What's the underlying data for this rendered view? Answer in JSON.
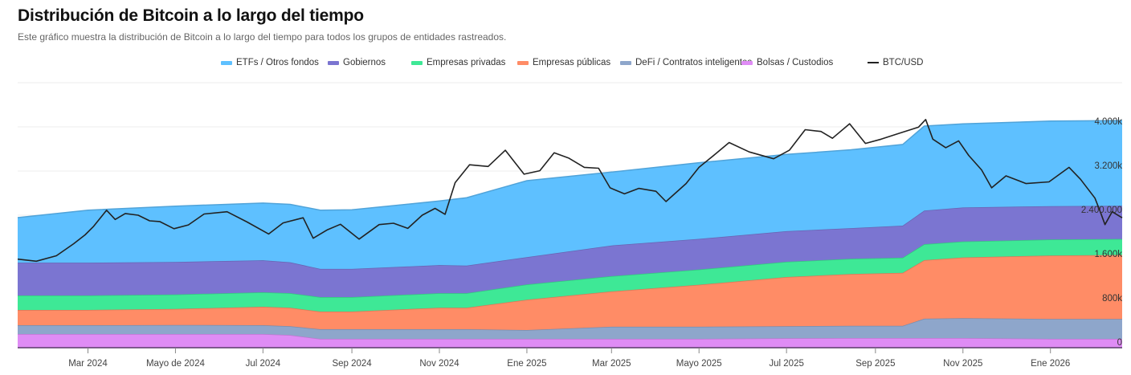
{
  "header": {
    "title": "Distribución de Bitcoin a lo largo del tiempo",
    "subtitle": "Este gráfico muestra la distribución de Bitcoin a lo largo del tiempo para todos los grupos de entidades rastreados."
  },
  "chart_data": {
    "type": "area",
    "stacked": true,
    "title": "Distribución de Bitcoin a lo largo del tiempo",
    "xlabel": "",
    "ylabel": "",
    "ylim": [
      0,
      4800000
    ],
    "y_ticks": [
      {
        "value": 0,
        "label": "0"
      },
      {
        "value": 800000,
        "label": "800k"
      },
      {
        "value": 1600000,
        "label": "1.600k"
      },
      {
        "value": 2400000,
        "label": "2.400.000"
      },
      {
        "value": 3200000,
        "label": "3.200k"
      },
      {
        "value": 4000000,
        "label": "4.000k"
      }
    ],
    "y_axis_position": "right-inside",
    "grid": true,
    "legend_position": "top-center",
    "x_range": [
      "2024-01-12",
      "2026-02-20"
    ],
    "x_ticks": [
      {
        "date": "2024-03-01",
        "label": "Mar 2024"
      },
      {
        "date": "2024-05-01",
        "label": "Mayo de 2024"
      },
      {
        "date": "2024-07-01",
        "label": "Jul 2024"
      },
      {
        "date": "2024-09-01",
        "label": "Sep 2024"
      },
      {
        "date": "2024-11-01",
        "label": "Nov 2024"
      },
      {
        "date": "2025-01-01",
        "label": "Ene 2025"
      },
      {
        "date": "2025-03-01",
        "label": "Mar 2025"
      },
      {
        "date": "2025-05-01",
        "label": "Mayo 2025"
      },
      {
        "date": "2025-07-01",
        "label": "Jul 2025"
      },
      {
        "date": "2025-09-01",
        "label": "Sep 2025"
      },
      {
        "date": "2025-11-01",
        "label": "Nov 2025"
      },
      {
        "date": "2026-01-01",
        "label": "Ene 2026"
      }
    ],
    "x": [
      "2024-01-12",
      "2024-03-01",
      "2024-05-01",
      "2024-07-01",
      "2024-07-20",
      "2024-08-10",
      "2024-09-01",
      "2024-11-01",
      "2024-11-20",
      "2025-01-01",
      "2025-03-01",
      "2025-05-01",
      "2025-07-01",
      "2025-08-15",
      "2025-09-20",
      "2025-10-05",
      "2025-11-01",
      "2026-01-01",
      "2026-02-20"
    ],
    "series": [
      {
        "name": "Bolsas / Custodios",
        "color": "#df8cf5",
        "values": [
          247000,
          247000,
          247000,
          247000,
          230000,
          160000,
          160000,
          160000,
          160000,
          160000,
          160000,
          160000,
          170000,
          175000,
          175000,
          175000,
          175000,
          160000,
          160000
        ]
      },
      {
        "name": "DeFi / Contratos inteligentes",
        "color": "#8ea6cb",
        "values": [
          160000,
          160000,
          165000,
          160000,
          160000,
          175000,
          175000,
          175000,
          175000,
          160000,
          220000,
          220000,
          220000,
          220000,
          220000,
          350000,
          360000,
          360000,
          360000
        ]
      },
      {
        "name": "Empresas públicas",
        "color": "#ff8c66",
        "values": [
          276000,
          276000,
          290000,
          335000,
          335000,
          320000,
          320000,
          390000,
          390000,
          550000,
          640000,
          760000,
          890000,
          940000,
          960000,
          1060000,
          1100000,
          1150000,
          1160000
        ]
      },
      {
        "name": "Empresas privadas",
        "color": "#3ee896",
        "values": [
          262000,
          262000,
          262000,
          262000,
          262000,
          262000,
          262000,
          262000,
          262000,
          276000,
          276000,
          276000,
          276000,
          276000,
          276000,
          290000,
          290000,
          290000,
          290000
        ]
      },
      {
        "name": "Gobiernos",
        "color": "#7b75d1",
        "values": [
          596000,
          596000,
          590000,
          580000,
          560000,
          510000,
          510000,
          510000,
          500000,
          495000,
          555000,
          555000,
          555000,
          555000,
          580000,
          610000,
          615000,
          605000,
          600000
        ]
      },
      {
        "name": "ETFs / Otros fondos",
        "color": "#5ec0ff",
        "values": [
          815000,
          950000,
          1010000,
          1035000,
          1050000,
          1065000,
          1070000,
          1160000,
          1230000,
          1385000,
          1330000,
          1380000,
          1390000,
          1420000,
          1470000,
          1530000,
          1515000,
          1540000,
          1545000
        ]
      }
    ],
    "line_series": {
      "name": "BTC/USD",
      "color": "#222222",
      "axis": "secondary",
      "x": [
        "2024-01-12",
        "2024-01-25",
        "2024-02-08",
        "2024-02-20",
        "2024-02-28",
        "2024-03-05",
        "2024-03-14",
        "2024-03-20",
        "2024-03-27",
        "2024-04-05",
        "2024-04-13",
        "2024-04-20",
        "2024-04-30",
        "2024-05-10",
        "2024-05-21",
        "2024-06-06",
        "2024-06-20",
        "2024-07-05",
        "2024-07-15",
        "2024-07-29",
        "2024-08-05",
        "2024-08-15",
        "2024-08-24",
        "2024-09-06",
        "2024-09-20",
        "2024-09-30",
        "2024-10-10",
        "2024-10-20",
        "2024-10-29",
        "2024-11-05",
        "2024-11-12",
        "2024-11-22",
        "2024-12-05",
        "2024-12-17",
        "2024-12-30",
        "2025-01-10",
        "2025-01-20",
        "2025-01-30",
        "2025-02-10",
        "2025-02-20",
        "2025-02-28",
        "2025-03-10",
        "2025-03-20",
        "2025-04-01",
        "2025-04-08",
        "2025-04-22",
        "2025-05-01",
        "2025-05-12",
        "2025-05-22",
        "2025-06-05",
        "2025-06-22",
        "2025-07-03",
        "2025-07-14",
        "2025-07-25",
        "2025-08-02",
        "2025-08-14",
        "2025-08-25",
        "2025-09-05",
        "2025-09-18",
        "2025-10-01",
        "2025-10-06",
        "2025-10-11",
        "2025-10-20",
        "2025-10-29",
        "2025-11-05",
        "2025-11-14",
        "2025-11-21",
        "2025-12-01",
        "2025-12-15",
        "2025-12-31",
        "2026-01-14",
        "2026-01-22",
        "2026-02-01",
        "2026-02-05",
        "2026-02-08",
        "2026-02-13",
        "2026-02-20"
      ],
      "values": [
        42800,
        41600,
        44800,
        51800,
        57000,
        62000,
        71400,
        66000,
        69500,
        68500,
        65200,
        64800,
        60600,
        62800,
        69200,
        70500,
        64500,
        57500,
        64000,
        67000,
        55000,
        60000,
        63200,
        54500,
        63000,
        63800,
        60800,
        68500,
        72500,
        69000,
        87500,
        98000,
        97000,
        106500,
        92500,
        94500,
        105000,
        102000,
        96500,
        96000,
        84500,
        81000,
        84200,
        82500,
        76500,
        87000,
        96500,
        104000,
        111000,
        105500,
        101500,
        106500,
        118500,
        117500,
        113500,
        122000,
        110500,
        113000,
        116500,
        120000,
        124500,
        113000,
        108000,
        112000,
        103500,
        95000,
        84500,
        91500,
        87000,
        88000,
        96500,
        89500,
        78500,
        70000,
        63000,
        70500,
        67000
      ]
    }
  },
  "legend": {
    "items": [
      {
        "label": "ETFs / Otros fondos",
        "color": "#5ec0ff",
        "kind": "area"
      },
      {
        "label": "Gobiernos",
        "color": "#7b75d1",
        "kind": "area"
      },
      {
        "label": "Empresas privadas",
        "color": "#3ee896",
        "kind": "area"
      },
      {
        "label": "Empresas públicas",
        "color": "#ff8c66",
        "kind": "area"
      },
      {
        "label": "DeFi / Contratos inteligentes",
        "color": "#8ea6cb",
        "kind": "area"
      },
      {
        "label": "Bolsas / Custodios",
        "color": "#df8cf5",
        "kind": "area"
      },
      {
        "label": "BTC/USD",
        "color": "#222222",
        "kind": "line"
      }
    ]
  }
}
